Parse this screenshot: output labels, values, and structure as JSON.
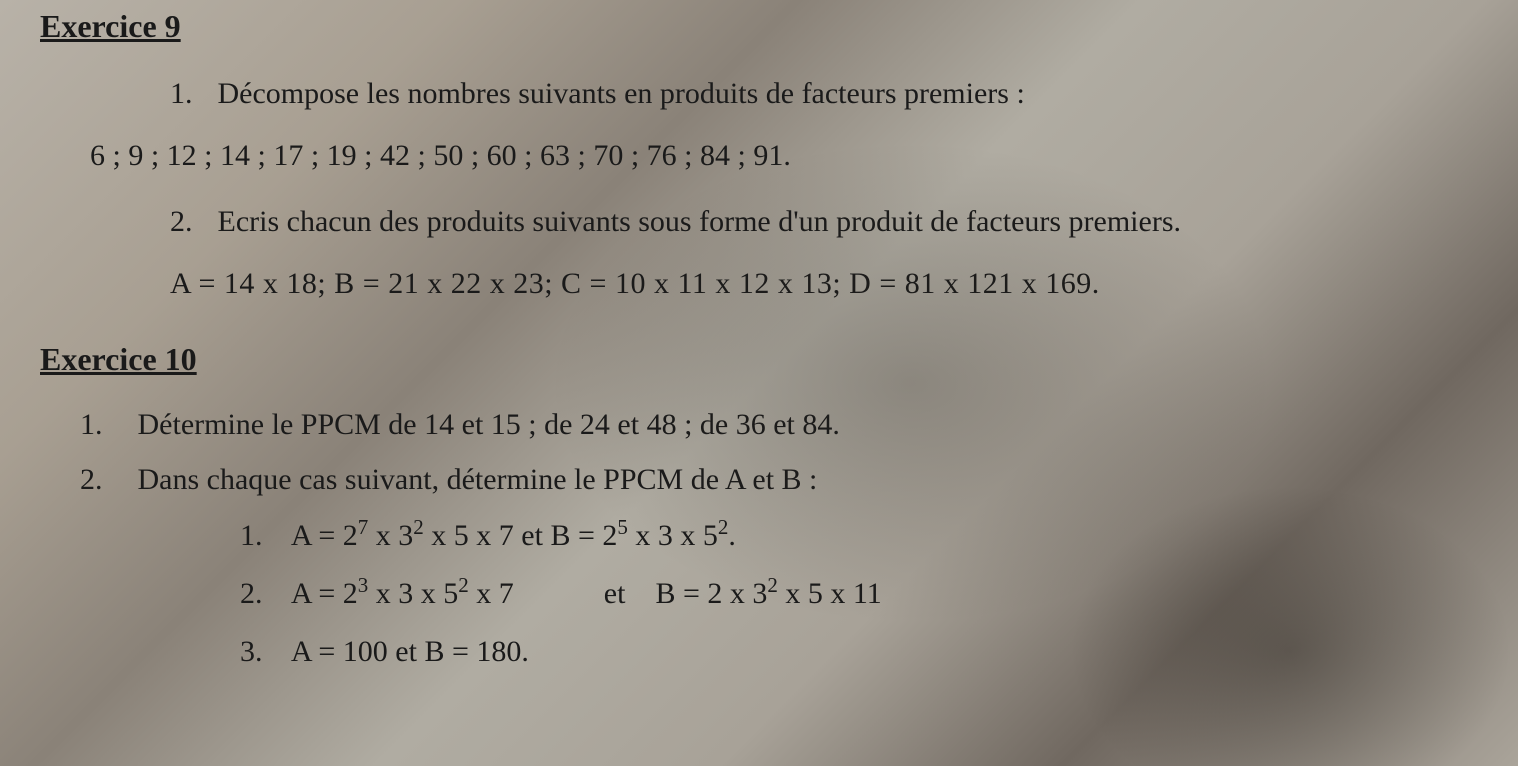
{
  "ex9": {
    "title": "Exercice 9",
    "q1": {
      "num": "1.",
      "text": "Décompose les nombres suivants en produits de  facteurs premiers :"
    },
    "numbers": "6 ; 9 ; 12 ; 14 ; 17 ; 19 ; 42 ; 50 ; 60 ; 63 ; 70 ; 76 ; 84 ; 91.",
    "q2": {
      "num": "2.",
      "text": "Ecris chacun des produits suivants sous forme  d'un produit de facteurs premiers."
    },
    "expressions": "A = 14 x 18;   B = 21 x 22 x 23;   C = 10 x 11 x 12 x 13;   D = 81 x 121 x 169."
  },
  "ex10": {
    "title": "Exercice 10",
    "q1": {
      "num": "1.",
      "text": "Détermine le PPCM de 14 et 15 ; de 24 et 48 ; de 36 et 84."
    },
    "q2": {
      "num": "2.",
      "text": "Dans chaque cas suivant, détermine le PPCM de A et B :"
    },
    "sub1": {
      "num": "1.",
      "a_pre": "A = 2",
      "a_exp1": "7",
      "a_mid1": "  x  3",
      "a_exp2": "2",
      "a_mid2": "  x  5 x 7  et  B = 2",
      "b_exp1": "5",
      "b_mid1": " x 3 x 5",
      "b_exp2": "2",
      "b_end": "."
    },
    "sub2": {
      "num": "2.",
      "a_pre": "A = 2",
      "a_exp1": "3",
      "a_mid1": " x 3 x 5",
      "a_exp2": "2",
      "a_mid2": "  x 7",
      "conj": "et",
      "b_pre": "B = 2 x 3",
      "b_exp1": "2",
      "b_end": " x 5 x 11"
    },
    "sub3": {
      "num": "3.",
      "text": "A = 100  et  B = 180."
    }
  }
}
